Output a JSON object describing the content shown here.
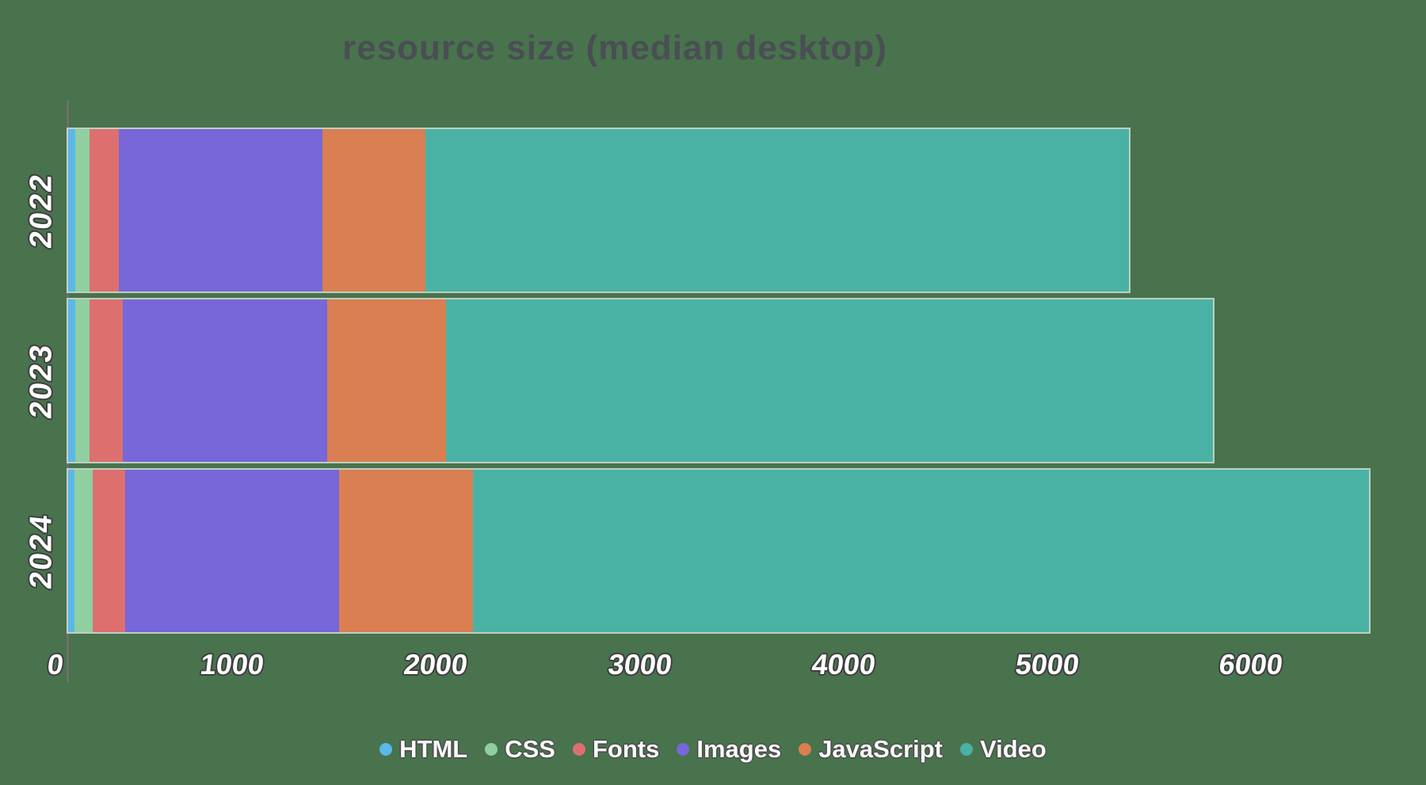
{
  "title": "resource size (median desktop)",
  "background_color": "#48734D",
  "axis_color": "#6E6E6E",
  "title_color": "#4A4E54",
  "chart_data": {
    "type": "bar",
    "orientation": "horizontal",
    "stacked": true,
    "title": "resource size (median desktop)",
    "categories": [
      "2022",
      "2023",
      "2024"
    ],
    "series": [
      {
        "name": "HTML",
        "color": "#5BB8E8",
        "values": [
          35,
          35,
          30
        ]
      },
      {
        "name": "CSS",
        "color": "#8FCFA0",
        "values": [
          70,
          70,
          90
        ]
      },
      {
        "name": "Fonts",
        "color": "#DD6F6F",
        "values": [
          145,
          165,
          160
        ]
      },
      {
        "name": "Images",
        "color": "#7767D9",
        "values": [
          1000,
          1000,
          1050
        ]
      },
      {
        "name": "JavaScript",
        "color": "#D97F52",
        "values": [
          505,
          585,
          655
        ]
      },
      {
        "name": "Video",
        "color": "#49B2A4",
        "values": [
          3450,
          3765,
          4400
        ]
      }
    ],
    "totals": [
      5205,
      5620,
      6385
    ],
    "x_ticks": [
      0,
      1000,
      2000,
      3000,
      4000,
      5000,
      6000
    ],
    "xlim": [
      0,
      6470
    ],
    "xlabel": "",
    "ylabel": "",
    "grid": false,
    "legend_position": "bottom",
    "legend_marker": "dot"
  }
}
